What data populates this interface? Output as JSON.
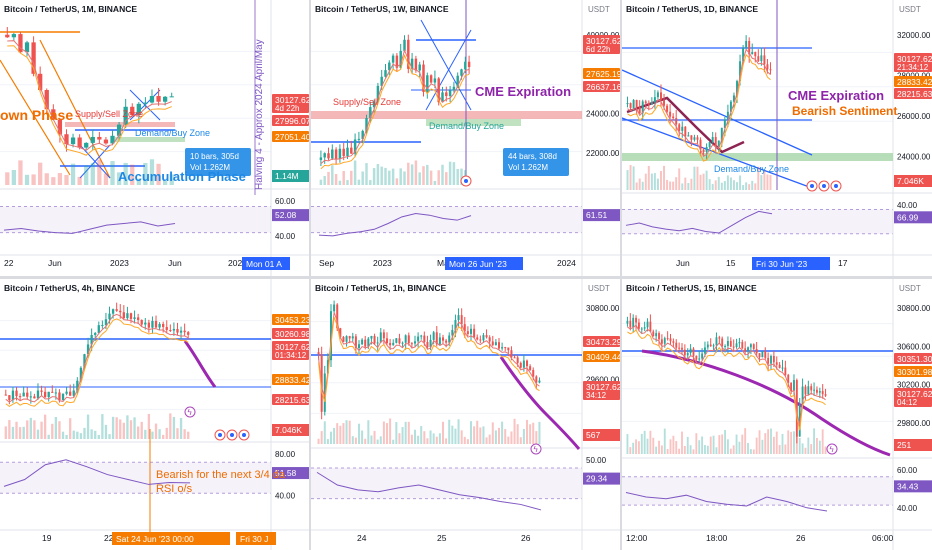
{
  "colors": {
    "up": "#26a69a",
    "down": "#ef5350",
    "blue": "#2962ff",
    "purple": "#9c27b0",
    "orange": "#f57c00",
    "ma_red": "#e57373",
    "ma_orange": "#ffa726",
    "rsi": "#7e57c2",
    "axis_label_bg": "#2962ff"
  },
  "panels": [
    {
      "id": "p1",
      "title": "Bitcoin / TetherUS, 1M, BINANCE",
      "unit": "",
      "price_labels": [
        {
          "text": "30127.62",
          "sub": "4d 22h",
          "bg": "#ef5350",
          "y": 103
        },
        {
          "text": "27996.07",
          "bg": "#ef5350",
          "y": 124
        },
        {
          "text": "27051.40",
          "bg": "#f57c00",
          "y": 140
        }
      ],
      "axis_labels": [],
      "rsi_labels": [
        "52.08"
      ],
      "rsi_ticks": [
        "60.00",
        "40.00"
      ],
      "time_labels": [
        {
          "text": "22",
          "x": 4
        },
        {
          "text": "Jun",
          "x": 48
        },
        {
          "text": "2023",
          "x": 110
        },
        {
          "text": "Jun",
          "x": 168
        },
        {
          "text": "202",
          "x": 228
        }
      ],
      "time_badge": {
        "text": "Mon 01 A",
        "x": 242
      },
      "annotations": [
        {
          "text": "own Phase",
          "color": "#ef6c00",
          "x": 0,
          "y": 120,
          "size": 14
        },
        {
          "text": "Supply/Sell Zone",
          "color": "#e53935",
          "x": 75,
          "y": 117,
          "size": 9
        },
        {
          "text": "Demand/Buy Zone",
          "color": "#1e88e5",
          "x": 135,
          "y": 136,
          "size": 9
        },
        {
          "text": "Accumulation Phase",
          "color": "#1e88e5",
          "x": 118,
          "y": 181,
          "size": 13
        }
      ],
      "vertical_text": "Halving 4 - Approx 2024 April/May",
      "info_box": {
        "lines": [
          "10 bars, 305d",
          "Vol 1.262M"
        ]
      },
      "vol_label": {
        "text": "1.14M"
      }
    },
    {
      "id": "p2",
      "title": "Bitcoin / TetherUS, 1W, BINANCE",
      "unit": "USDT",
      "price_labels": [
        {
          "text": "30127.62",
          "sub": "6d 22h",
          "bg": "#ef5350",
          "y": 44
        },
        {
          "text": "27625.19",
          "bg": "#f57c00",
          "y": 77
        },
        {
          "text": "26637.16",
          "bg": "#ef5350",
          "y": 90
        }
      ],
      "axis_labels": [
        "40000.00",
        "26000.00",
        "24000.00",
        "22000.00"
      ],
      "rsi_labels": [
        "61.51"
      ],
      "rsi_ticks": [],
      "time_labels": [
        {
          "text": "Sep",
          "x": 8
        },
        {
          "text": "2023",
          "x": 62
        },
        {
          "text": "Mar",
          "x": 126
        },
        {
          "text": "2024",
          "x": 246
        }
      ],
      "time_badge": {
        "text": "Mon 26 Jun '23",
        "x": 134
      },
      "annotations": [
        {
          "text": "Supply/Sell Zone",
          "color": "#e53935",
          "x": 22,
          "y": 105,
          "size": 9
        },
        {
          "text": "CME Expiration",
          "color": "#8e24aa",
          "x": 164,
          "y": 96,
          "size": 13
        },
        {
          "text": "Demand/Buy Zone",
          "color": "#26a69a",
          "x": 118,
          "y": 129,
          "size": 9
        }
      ],
      "info_box": {
        "lines": [
          "44 bars, 308d",
          "Vol 1.262M"
        ]
      }
    },
    {
      "id": "p3",
      "title": "Bitcoin / TetherUS, 1D, BINANCE",
      "unit": "USDT",
      "price_labels": [
        {
          "text": "30127.62",
          "sub": "21:34:12",
          "bg": "#ef5350",
          "y": 62
        },
        {
          "text": "28833.42",
          "bg": "#f57c00",
          "y": 85
        },
        {
          "text": "28215.63",
          "bg": "#ef5350",
          "y": 97
        }
      ],
      "axis_labels": [
        "32000.00",
        "28000.00",
        "26000.00",
        "24000.00"
      ],
      "rsi_labels": [
        "66.99"
      ],
      "rsi_ticks": [
        "40.00"
      ],
      "time_labels": [
        {
          "text": "Jun",
          "x": 54
        },
        {
          "text": "15",
          "x": 104
        },
        {
          "text": "17",
          "x": 216
        }
      ],
      "time_badge": {
        "text": "Fri 30 Jun '23",
        "x": 130
      },
      "annotations": [
        {
          "text": "CME Expiration",
          "color": "#8e24aa",
          "x": 166,
          "y": 100,
          "size": 13
        },
        {
          "text": "Bearish Sentiment",
          "color": "#ef6c00",
          "x": 170,
          "y": 115,
          "size": 12
        },
        {
          "text": "Demand/Buy Zone",
          "color": "#1e88e5",
          "x": 92,
          "y": 172,
          "size": 9
        }
      ],
      "vol_label": {
        "text": "7.046K"
      }
    },
    {
      "id": "p4",
      "title": "Bitcoin / TetherUS, 4h, BINANCE",
      "unit": "",
      "price_labels": [
        {
          "text": "30453.23",
          "bg": "#f57c00",
          "y": 323
        },
        {
          "text": "30260.98",
          "bg": "#ef5350",
          "y": 337
        },
        {
          "text": "30127.62",
          "sub": "01:34:12",
          "bg": "#ef5350",
          "y": 350
        },
        {
          "text": "28833.42",
          "bg": "#f57c00",
          "y": 383
        },
        {
          "text": "28215.63",
          "bg": "#ef5350",
          "y": 403
        }
      ],
      "axis_labels": [],
      "rsi_labels": [
        "51.58"
      ],
      "rsi_ticks": [
        "80.00",
        "40.00"
      ],
      "time_labels": [
        {
          "text": "19",
          "x": 42
        },
        {
          "text": "22",
          "x": 104
        },
        {
          "text": "26",
          "x": 198
        }
      ],
      "time_badge": {
        "text": "Sat 24 Jun '23   00:00",
        "x": 112
      },
      "time_badge2": {
        "text": "Fri 30 J",
        "x": 236
      },
      "annotations": [
        {
          "text": "Bearish  for the next 3/4 da",
          "color": "#ef6c00",
          "x": 156,
          "y": 478,
          "size": 11
        },
        {
          "text": "RSI o/s",
          "color": "#ef6c00",
          "x": 156,
          "y": 492,
          "size": 11
        }
      ],
      "vol_label": {
        "text": "7.046K"
      }
    },
    {
      "id": "p5",
      "title": "Bitcoin / TetherUS, 1h, BINANCE",
      "unit": "USDT",
      "price_labels": [
        {
          "text": "30473.29",
          "bg": "#ef5350",
          "y": 345
        },
        {
          "text": "30409.44",
          "bg": "#f57c00",
          "y": 360
        },
        {
          "text": "30127.62",
          "sub": "34:12",
          "bg": "#ef5350",
          "y": 390
        }
      ],
      "axis_labels": [
        "30800.00",
        "29600.00"
      ],
      "rsi_labels": [
        "29.34"
      ],
      "rsi_ticks": [
        "50.00"
      ],
      "time_labels": [
        {
          "text": "24",
          "x": 46
        },
        {
          "text": "25",
          "x": 126
        },
        {
          "text": "26",
          "x": 210
        }
      ],
      "time_badge": null,
      "vol_label": {
        "text": "567"
      }
    },
    {
      "id": "p6",
      "title": "Bitcoin / TetherUS, 15, BINANCE",
      "unit": "USDT",
      "price_labels": [
        {
          "text": "30351.30",
          "bg": "#ef5350",
          "y": 362
        },
        {
          "text": "30301.98",
          "bg": "#f57c00",
          "y": 375
        },
        {
          "text": "30127.62",
          "sub": "04:12",
          "bg": "#ef5350",
          "y": 397
        }
      ],
      "axis_labels": [
        "30800.00",
        "30600.00",
        "30200.00",
        "29800.00"
      ],
      "rsi_labels": [
        "34.43"
      ],
      "rsi_ticks": [
        "60.00",
        "40.00"
      ],
      "time_labels": [
        {
          "text": "12:00",
          "x": 4
        },
        {
          "text": "18:00",
          "x": 84
        },
        {
          "text": "26",
          "x": 174
        },
        {
          "text": "06:00",
          "x": 250
        }
      ],
      "time_badge": null,
      "vol_label": {
        "text": "251"
      }
    }
  ],
  "chart_data": [
    {
      "type": "candlestick",
      "title": "Bitcoin / TetherUS, 1M, BINANCE",
      "series": [
        {
          "name": "RSI",
          "values": [
            44,
            46,
            43,
            41,
            40,
            45,
            50,
            52,
            54,
            49,
            52
          ]
        }
      ],
      "price_labels": [
        30127.62,
        27996.07,
        27051.4
      ]
    },
    {
      "type": "candlestick",
      "title": "Bitcoin / TetherUS, 1W, BINANCE",
      "series": [
        {
          "name": "RSI",
          "values": [
            38,
            37,
            40,
            42,
            45,
            52,
            60,
            64,
            62,
            58,
            56,
            61.51
          ]
        }
      ],
      "price_labels": [
        30127.62,
        27625.19,
        26637.16
      ]
    },
    {
      "type": "candlestick",
      "title": "Bitcoin / TetherUS, 1D, BINANCE",
      "series": [
        {
          "name": "RSI",
          "values": [
            52,
            55,
            50,
            47,
            45,
            48,
            44,
            42,
            52,
            62,
            70,
            66.99
          ]
        }
      ],
      "price_labels": [
        30127.62,
        28833.42,
        28215.63
      ]
    },
    {
      "type": "candlestick",
      "title": "Bitcoin / TetherUS, 4h, BINANCE",
      "series": [
        {
          "name": "RSI",
          "values": [
            48,
            55,
            70,
            75,
            68,
            60,
            55,
            50,
            52,
            51.58
          ]
        }
      ],
      "price_labels": [
        30453.23,
        30260.98,
        30127.62,
        28833.42,
        28215.63
      ]
    },
    {
      "type": "candlestick",
      "title": "Bitcoin / TetherUS, 1h, BINANCE",
      "series": [
        {
          "name": "RSI",
          "values": [
            68,
            55,
            50,
            48,
            52,
            55,
            50,
            45,
            42,
            38,
            35,
            29.34
          ]
        }
      ],
      "price_labels": [
        30473.29,
        30409.44,
        30127.62
      ]
    },
    {
      "type": "candlestick",
      "title": "Bitcoin / TetherUS, 15, BINANCE",
      "series": [
        {
          "name": "RSI",
          "values": [
            55,
            50,
            48,
            52,
            45,
            42,
            40,
            50,
            45,
            38,
            34.43
          ]
        }
      ],
      "price_labels": [
        30351.3,
        30301.98,
        30127.62
      ]
    }
  ]
}
